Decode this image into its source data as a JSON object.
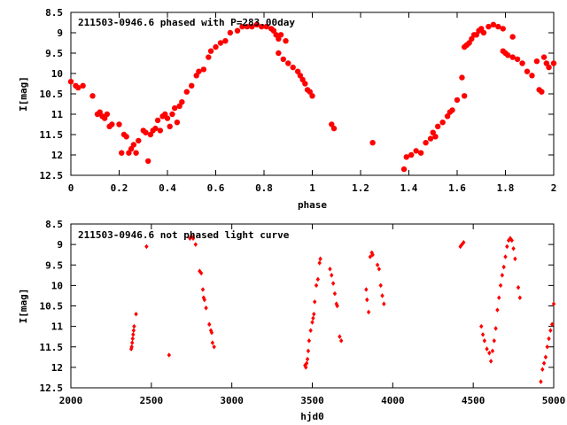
{
  "chart_data": [
    {
      "type": "scatter",
      "title": "211503-0946.6 phased with P=283.00day",
      "xlabel": "phase",
      "ylabel": "I[mag]",
      "xlim": [
        0,
        2
      ],
      "ylim": [
        12.5,
        8.5
      ],
      "y_inverted": true,
      "grid": false,
      "color": "#ff0000",
      "marker": "filled-circle",
      "xticks": [
        "0",
        "0.2",
        "0.4",
        "0.6",
        "0.8",
        "1",
        "1.2",
        "1.4",
        "1.6",
        "1.8",
        "2"
      ],
      "yticks": [
        "8.5",
        "9",
        "9.5",
        "10",
        "10.5",
        "11",
        "11.5",
        "12",
        "12.5"
      ],
      "points": [
        [
          0.0,
          10.2
        ],
        [
          0.02,
          10.3
        ],
        [
          0.03,
          10.35
        ],
        [
          0.05,
          10.3
        ],
        [
          0.09,
          10.55
        ],
        [
          0.11,
          11.0
        ],
        [
          0.12,
          10.95
        ],
        [
          0.13,
          11.05
        ],
        [
          0.14,
          11.1
        ],
        [
          0.15,
          11.0
        ],
        [
          0.16,
          11.3
        ],
        [
          0.17,
          11.25
        ],
        [
          0.2,
          11.25
        ],
        [
          0.21,
          11.95
        ],
        [
          0.22,
          11.5
        ],
        [
          0.23,
          11.55
        ],
        [
          0.24,
          11.95
        ],
        [
          0.25,
          11.85
        ],
        [
          0.26,
          11.75
        ],
        [
          0.27,
          11.95
        ],
        [
          0.28,
          11.65
        ],
        [
          0.3,
          11.4
        ],
        [
          0.31,
          11.45
        ],
        [
          0.32,
          12.15
        ],
        [
          0.33,
          11.5
        ],
        [
          0.34,
          11.4
        ],
        [
          0.35,
          11.35
        ],
        [
          0.36,
          11.15
        ],
        [
          0.37,
          11.4
        ],
        [
          0.38,
          11.05
        ],
        [
          0.39,
          11.0
        ],
        [
          0.4,
          11.1
        ],
        [
          0.41,
          11.3
        ],
        [
          0.42,
          11.0
        ],
        [
          0.43,
          10.85
        ],
        [
          0.44,
          11.2
        ],
        [
          0.45,
          10.8
        ],
        [
          0.46,
          10.7
        ],
        [
          0.48,
          10.45
        ],
        [
          0.5,
          10.3
        ],
        [
          0.52,
          10.05
        ],
        [
          0.53,
          9.95
        ],
        [
          0.55,
          9.9
        ],
        [
          0.57,
          9.6
        ],
        [
          0.58,
          9.45
        ],
        [
          0.6,
          9.35
        ],
        [
          0.62,
          9.25
        ],
        [
          0.64,
          9.2
        ],
        [
          0.66,
          9.0
        ],
        [
          0.69,
          8.95
        ],
        [
          0.71,
          8.85
        ],
        [
          0.73,
          8.85
        ],
        [
          0.75,
          8.85
        ],
        [
          0.77,
          8.8
        ],
        [
          0.79,
          8.85
        ],
        [
          0.81,
          8.85
        ],
        [
          0.83,
          8.9
        ],
        [
          0.84,
          8.95
        ],
        [
          0.85,
          9.05
        ],
        [
          0.86,
          9.15
        ],
        [
          0.87,
          9.05
        ],
        [
          0.89,
          9.2
        ],
        [
          0.86,
          9.5
        ],
        [
          0.88,
          9.65
        ],
        [
          0.9,
          9.75
        ],
        [
          0.92,
          9.85
        ],
        [
          0.94,
          9.95
        ],
        [
          0.95,
          10.05
        ],
        [
          0.96,
          10.15
        ],
        [
          0.97,
          10.25
        ],
        [
          0.98,
          10.4
        ],
        [
          0.99,
          10.45
        ],
        [
          1.0,
          10.55
        ],
        [
          1.08,
          11.25
        ],
        [
          1.09,
          11.35
        ],
        [
          1.25,
          11.7
        ],
        [
          1.38,
          12.35
        ],
        [
          1.39,
          12.05
        ],
        [
          1.41,
          12.0
        ],
        [
          1.43,
          11.9
        ],
        [
          1.45,
          11.95
        ],
        [
          1.47,
          11.7
        ],
        [
          1.49,
          11.6
        ],
        [
          1.5,
          11.45
        ],
        [
          1.51,
          11.55
        ],
        [
          1.52,
          11.3
        ],
        [
          1.54,
          11.2
        ],
        [
          1.56,
          11.05
        ],
        [
          1.57,
          10.95
        ],
        [
          1.58,
          10.9
        ],
        [
          1.6,
          10.65
        ],
        [
          1.62,
          10.1
        ],
        [
          1.63,
          9.35
        ],
        [
          1.64,
          9.3
        ],
        [
          1.65,
          9.25
        ],
        [
          1.66,
          9.15
        ],
        [
          1.67,
          9.05
        ],
        [
          1.68,
          9.05
        ],
        [
          1.69,
          8.95
        ],
        [
          1.7,
          8.9
        ],
        [
          1.71,
          9.0
        ],
        [
          1.73,
          8.85
        ],
        [
          1.75,
          8.8
        ],
        [
          1.77,
          8.85
        ],
        [
          1.79,
          8.9
        ],
        [
          1.79,
          9.45
        ],
        [
          1.8,
          9.5
        ],
        [
          1.81,
          9.55
        ],
        [
          1.83,
          9.6
        ],
        [
          1.85,
          9.65
        ],
        [
          1.83,
          9.1
        ],
        [
          1.87,
          9.75
        ],
        [
          1.89,
          9.95
        ],
        [
          1.91,
          10.05
        ],
        [
          1.93,
          9.7
        ],
        [
          1.94,
          10.4
        ],
        [
          1.95,
          10.45
        ],
        [
          1.96,
          9.6
        ],
        [
          1.97,
          9.75
        ],
        [
          1.98,
          9.85
        ],
        [
          2.0,
          9.75
        ],
        [
          1.63,
          10.55
        ]
      ]
    },
    {
      "type": "scatter",
      "title": "211503-0946.6 not phased light curve",
      "xlabel": "hjd0",
      "ylabel": "I[mag]",
      "xlim": [
        2000,
        5000
      ],
      "ylim": [
        12.5,
        8.5
      ],
      "y_inverted": true,
      "grid": false,
      "color": "#ff0000",
      "marker": "small-diamond",
      "xticks": [
        "2000",
        "2500",
        "3000",
        "3500",
        "4000",
        "4500",
        "5000"
      ],
      "yticks": [
        "8.5",
        "9",
        "9.5",
        "10",
        "10.5",
        "11",
        "11.5",
        "12",
        "12.5"
      ],
      "points": [
        [
          2375,
          11.55
        ],
        [
          2378,
          11.5
        ],
        [
          2381,
          11.4
        ],
        [
          2384,
          11.3
        ],
        [
          2387,
          11.2
        ],
        [
          2390,
          11.1
        ],
        [
          2393,
          11.0
        ],
        [
          2405,
          10.7
        ],
        [
          2470,
          9.05
        ],
        [
          2610,
          11.7
        ],
        [
          2740,
          8.85
        ],
        [
          2750,
          8.8
        ],
        [
          2760,
          8.85
        ],
        [
          2775,
          9.0
        ],
        [
          2800,
          9.65
        ],
        [
          2810,
          9.7
        ],
        [
          2820,
          10.1
        ],
        [
          2825,
          10.3
        ],
        [
          2830,
          10.35
        ],
        [
          2840,
          10.55
        ],
        [
          2860,
          10.95
        ],
        [
          2870,
          11.1
        ],
        [
          2875,
          11.15
        ],
        [
          2880,
          11.4
        ],
        [
          2890,
          11.5
        ],
        [
          3455,
          11.95
        ],
        [
          3460,
          12.0
        ],
        [
          3465,
          11.9
        ],
        [
          3470,
          11.8
        ],
        [
          3475,
          11.6
        ],
        [
          3480,
          11.35
        ],
        [
          3490,
          11.1
        ],
        [
          3500,
          10.9
        ],
        [
          3505,
          10.8
        ],
        [
          3510,
          10.7
        ],
        [
          3515,
          10.4
        ],
        [
          3525,
          10.0
        ],
        [
          3535,
          9.85
        ],
        [
          3545,
          9.45
        ],
        [
          3550,
          9.35
        ],
        [
          3610,
          9.6
        ],
        [
          3620,
          9.75
        ],
        [
          3630,
          9.95
        ],
        [
          3640,
          10.2
        ],
        [
          3650,
          10.45
        ],
        [
          3655,
          10.5
        ],
        [
          3670,
          11.25
        ],
        [
          3680,
          11.35
        ],
        [
          3835,
          10.1
        ],
        [
          3840,
          10.35
        ],
        [
          3850,
          10.65
        ],
        [
          3860,
          9.3
        ],
        [
          3870,
          9.2
        ],
        [
          3875,
          9.25
        ],
        [
          3905,
          9.5
        ],
        [
          3915,
          9.6
        ],
        [
          3925,
          10.0
        ],
        [
          3935,
          10.25
        ],
        [
          3945,
          10.45
        ],
        [
          4420,
          9.05
        ],
        [
          4430,
          9.0
        ],
        [
          4440,
          8.95
        ],
        [
          4550,
          11.0
        ],
        [
          4560,
          11.2
        ],
        [
          4570,
          11.35
        ],
        [
          4585,
          11.55
        ],
        [
          4600,
          11.65
        ],
        [
          4610,
          11.85
        ],
        [
          4620,
          11.6
        ],
        [
          4630,
          11.35
        ],
        [
          4640,
          11.05
        ],
        [
          4650,
          10.6
        ],
        [
          4660,
          10.3
        ],
        [
          4670,
          10.0
        ],
        [
          4680,
          9.75
        ],
        [
          4690,
          9.55
        ],
        [
          4700,
          9.3
        ],
        [
          4710,
          9.05
        ],
        [
          4720,
          8.9
        ],
        [
          4730,
          8.85
        ],
        [
          4740,
          8.9
        ],
        [
          4750,
          9.1
        ],
        [
          4760,
          9.35
        ],
        [
          4780,
          10.05
        ],
        [
          4790,
          10.3
        ],
        [
          4920,
          12.35
        ],
        [
          4930,
          12.05
        ],
        [
          4940,
          11.9
        ],
        [
          4950,
          11.75
        ],
        [
          4960,
          11.5
        ],
        [
          4970,
          11.3
        ],
        [
          4980,
          11.1
        ],
        [
          4990,
          10.95
        ],
        [
          5000,
          10.45
        ]
      ]
    }
  ]
}
